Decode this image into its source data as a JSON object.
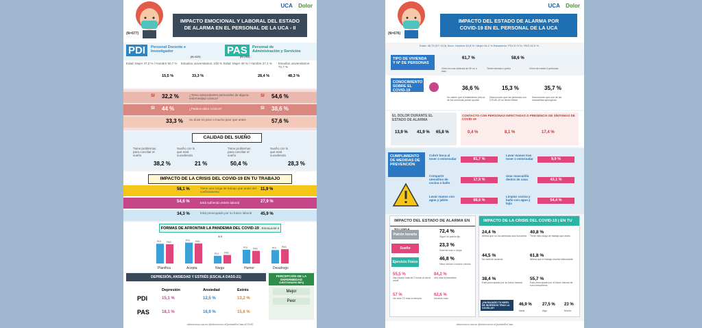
{
  "left": {
    "title_line1": "IMPACTO EMOCIONAL Y LABORAL DEL ESTADO",
    "title_line2": "DE ALARMA EN EL PERSONAL DE LA UCA - II",
    "tag": "(N=677)",
    "logo_uca": "UCA",
    "logo_dolor": "Dolor",
    "pdi": {
      "code": "PDI",
      "name1": "Personal Docente e",
      "name2": "Investigador",
      "n": "(N=423)"
    },
    "pas": {
      "code": "PAS",
      "name1": "Personal de",
      "name2": "Administración y Servicios",
      "n": "(N=254)"
    },
    "pdi_stats": {
      "edad": "Edad: Mujer 47,2 % / Hombre 50,7 %",
      "fijo": "Estudios universitarios: 100 %",
      "p1": "15,5 %",
      "p2": "33,3 %"
    },
    "pas_stats": {
      "edad": "Edad: Mujer 40 % / Hombre 37,1 %",
      "fijo": "Estudios universitarios: 72,7 %",
      "p1": "28,4 %",
      "p2": "48,3 %"
    },
    "mood": [
      {
        "label": "SI",
        "pdi": "32,2 %",
        "pas": "54,6 %",
        "q": "¿Tiene antecedentes personales de alguna enfermedad crónica?"
      },
      {
        "label": "SI",
        "pdi": "44 %",
        "pas": "38,6 %",
        "q": "¿Padece dolor crónico?"
      },
      {
        "label": "",
        "pdi": "33,3 %",
        "pas": "57,6 %",
        "q": "Su dolor es peor o mucho peor que antes"
      }
    ],
    "sleep": {
      "title": "CALIDAD DEL SUEÑO",
      "pdi_a": "38,2 %",
      "pdi_b": "21 %",
      "pas_a": "50,4 %",
      "pas_b": "28,3 %",
      "la": "Tiene problemas para conciliar el sueño",
      "lb": "Sueño con lo que está sucediendo"
    },
    "work": {
      "title": "IMPACTO DE LA CRISIS DEL COVID-19 EN TU TRABAJO",
      "rows": [
        {
          "pdi": "58,1 %",
          "pas": "11,9 %",
          "text": "Tiene una carga de trabajo que antes del confinamiento"
        },
        {
          "pdi": "54,6 %",
          "pas": "27,9 %",
          "text": "Está sufriendo estrés laboral"
        },
        {
          "pdi": "34,3 %",
          "pas": "45,9 %",
          "text": "Está preocupado por su futuro laboral"
        }
      ]
    },
    "coping": {
      "title": "FORMAS DE AFRONTAR LA PANDEMIA DEL COVID-19",
      "sub": "- ESCALA DE 0 A 9",
      "groups": [
        "Planifica",
        "Acepta",
        "Niega",
        "Humor",
        "Desahogo"
      ],
      "pdi_label": "PDI",
      "pas_label": "PAS",
      "values_pdi": [
        7.2,
        7.6,
        2.8,
        5.0,
        4.9
      ],
      "values_pas": [
        7.0,
        7.3,
        3.1,
        4.6,
        5.2
      ]
    },
    "dass": {
      "title": "DEPRESIÓN, ANSIEDAD Y ESTRÉS (ESCALA DASS-21)",
      "cols": [
        "Depresión",
        "Ansiedad",
        "Estrés"
      ],
      "pdi": [
        "15,1 %",
        "12,5 %",
        "13,2 %"
      ],
      "pas": [
        "18,1 %",
        "16,9 %",
        "15,6 %"
      ],
      "side_title": "PERCEPCIÓN DE LA ENFERMEDAD",
      "side_sub": "CUESTIONARIO BIPQ",
      "better": "Mejor",
      "worse": "Peor"
    },
    "footer": "dolorcronico.uca.es   @dolorcronico   #QuedateEnCasa   #COVID"
  },
  "right": {
    "title_line1": "IMPACTO DEL ESTADO DE ALARMA POR",
    "title_line2": "COVID-19 EN EL PERSONAL DE LA UCA",
    "tag": "(N=676)",
    "stats": "Edad: 48,75 (DT 10,5)   Sexo: Hombre 45,8 % / Mujer 54,2 %   Estamento: PDI 37,5 % / PAS 62,5 %",
    "housing": {
      "label1": "TIPO DE VIVIENDA",
      "label2": "Y Nº DE PERSONAS",
      "v1": "61,7 %",
      "v2": "58,6 %",
      "c1": "Viven en una vivienda de 90 m² o más",
      "c2": "Tienen terraza o jardín",
      "c3": "Viven de media 3 personas"
    },
    "knowledge": {
      "label": "CONOCIMIENTO SOBRE EL COVID-19",
      "v1": "36,6 %",
      "v2": "15,3 %",
      "v3": "35,7 %",
      "t1": "No saben que el tratamiento precoz de los síntomas puede ayudar",
      "t2": "Desconocen que las personas con COVID-19 no tienen fiebre",
      "t3": "Desconocen que uso de las mascarillas quirúrgicas"
    },
    "pain": {
      "label": "EL DOLOR DURANTE EL ESTADO DE ALARMA",
      "v1": "13,9 %",
      "v2": "41,9 %",
      "v3": "65,8 %"
    },
    "contact": {
      "label": "CONTACTO CON PERSONAS INFECTADAS O PRESENCIA DE SÍNTOMAS DE COVID-19",
      "v1": "0,4 %",
      "v2": "8,1 %",
      "v3": "17,4 %"
    },
    "measures": {
      "label": "CUMPLIMIENTO DE MEDIDAS DE PREVENCIÓN",
      "items": [
        {
          "text": "Cubrir boca al toser o estornudar",
          "v": "81,7 %"
        },
        {
          "text": "Lavar manos tras toser o estornudar",
          "v": "9,9 %"
        },
        {
          "text": "Compartir utensilios de cocina o baño",
          "v": "17,9 %"
        },
        {
          "text": "Usar mascarilla dentro de casa",
          "v": "43,1 %"
        },
        {
          "text": "Lavar manos con agua y jabón",
          "v": "88,6 %"
        },
        {
          "text": "Limpiar cocina y baño con agua y lejía",
          "v": "54,4 %"
        }
      ]
    },
    "life": {
      "title": "IMPACTO DEL ESTADO DE ALARMA EN TU VIDA",
      "rows": [
        {
          "label": "Patrón horario",
          "v": "72,4 %",
          "t": "Sigue un patrón fijo"
        },
        {
          "label": "Sueño",
          "v": "23,3 %",
          "t": "Duerme más o mejor"
        },
        {
          "label": "Ejercicio Físico",
          "v": "46,8 %",
          "t": "Hace menos o mucho menos"
        }
      ],
      "extra": [
        {
          "v": "55,5 %",
          "t": "Han usado más de 2 horas al día el móvil"
        },
        {
          "v": "84,2 %",
          "t": "Ven más la televisión"
        },
        {
          "v": "57 %",
          "t": "Ha visto TV más a menudo"
        },
        {
          "v": "62,6 %",
          "t": "Ha leído más"
        }
      ]
    },
    "work": {
      "title": "IMPACTO DE LA CRISIS DEL COVID-19 | EN TU TRABAJO",
      "items": [
        {
          "v": "24,4 %",
          "t": "Afirma que no ha cambiado sus funciones"
        },
        {
          "v": "40,8 %",
          "t": "Tiene más carga de trabajo que antes"
        },
        {
          "v": "44,5 %",
          "t": "No está de acuerdo"
        },
        {
          "v": "61,8 %",
          "t": "Afirma que el trabajo resulta estimulante"
        },
        {
          "v": "38,4 %",
          "t": "Está preocupado por su futuro laboral"
        },
        {
          "v": "55,7 %",
          "t": "Está preocupado por el futuro laboral de sus compañeros"
        }
      ],
      "income_q": "¿HA BAJADO TU NIVEL DE INGRESOS TRAS LA COVID-19?",
      "income": [
        "46,9 %",
        "27,5 %",
        "23 %"
      ],
      "income_lbl": [
        "Nada",
        "Algo",
        "Mucho"
      ]
    },
    "footer": "dolorcronico.uca.es   @dolorcronico   #QuedateEnCasa"
  },
  "colors": {
    "pdi": "#2a86c8",
    "pas": "#2bb3a3",
    "pink": "#e86a8e",
    "yellow": "#f5c518",
    "teal": "#2bb3a3"
  }
}
